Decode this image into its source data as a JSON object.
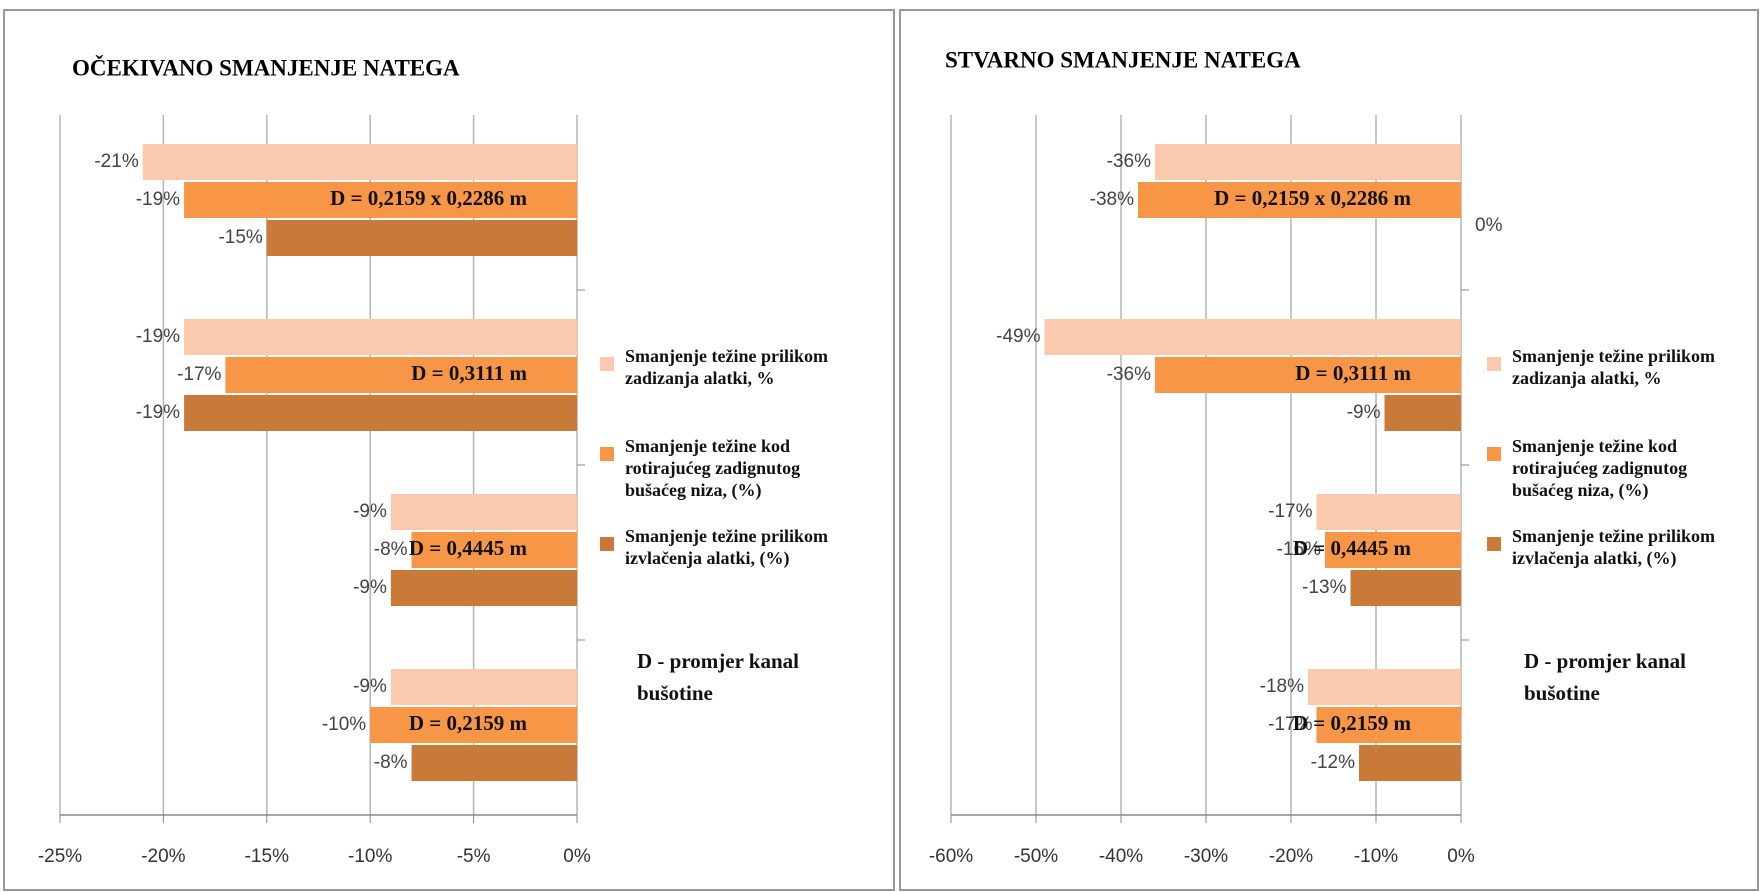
{
  "chart_data": [
    {
      "type": "bar",
      "orientation": "horizontal",
      "title": "OČEKIVANO SMANJENJE NATEGA",
      "categories": [
        "D = 0,2159 x 0,2286 m",
        "D = 0,3111 m",
        "D = 0,4445 m",
        "D = 0,2159 m"
      ],
      "series": [
        {
          "name": "Smanjenje težine prilikom zadizanja alatki, %",
          "color": "#fbcaae",
          "values": [
            -21,
            -19,
            -9,
            -9
          ],
          "value_labels": [
            "-21%",
            "-19%",
            "-9%",
            "-9%"
          ]
        },
        {
          "name": "Smanjenje težine kod rotirajućeg zadignutog bušaćeg niza, (%)",
          "color": "#f79646",
          "values": [
            -19,
            -17,
            -8,
            -10
          ],
          "value_labels": [
            "-19%",
            "-17%",
            "-8%",
            "-10%"
          ]
        },
        {
          "name": "Smanjenje težine prilikom izvlačenja alatki, (%)",
          "color": "#c97a38",
          "values": [
            -15,
            -19,
            -9,
            -8
          ],
          "value_labels": [
            "-15%",
            "-19%",
            "-9%",
            "-8%"
          ]
        }
      ],
      "xlim": [
        -25,
        0
      ],
      "xticks": [
        {
          "value": -25,
          "label": "-25%"
        },
        {
          "value": -20,
          "label": "-20%"
        },
        {
          "value": -15,
          "label": "-15%"
        },
        {
          "value": -10,
          "label": "-10%"
        },
        {
          "value": -5,
          "label": "-5%"
        },
        {
          "value": 0,
          "label": "0%"
        }
      ],
      "grid": true,
      "legend": "right",
      "note": "D - promjer kanal bušotine"
    },
    {
      "type": "bar",
      "orientation": "horizontal",
      "title": "STVARNO SMANJENJE NATEGA",
      "categories": [
        "D = 0,2159 x 0,2286 m",
        "D = 0,3111 m",
        "D = 0,4445 m",
        "D = 0,2159 m"
      ],
      "series": [
        {
          "name": "Smanjenje težine prilikom zadizanja alatki, %",
          "color": "#fbcaae",
          "values": [
            -36,
            -49,
            -17,
            -18
          ],
          "value_labels": [
            "-36%",
            "-49%",
            "-17%",
            "-18%"
          ]
        },
        {
          "name": "Smanjenje težine kod rotirajućeg zadignutog bušaćeg niza, (%)",
          "color": "#f79646",
          "values": [
            -38,
            -36,
            -16,
            -17
          ],
          "value_labels": [
            "-38%",
            "-36%",
            "-16%",
            "-17%"
          ]
        },
        {
          "name": "Smanjenje težine prilikom izvlačenja alatki, (%)",
          "color": "#c97a38",
          "values": [
            0,
            -9,
            -13,
            -12
          ],
          "value_labels": [
            "0%",
            "-9%",
            "-13%",
            "-12%"
          ]
        }
      ],
      "xlim": [
        -60,
        0
      ],
      "xticks": [
        {
          "value": -60,
          "label": "-60%"
        },
        {
          "value": -50,
          "label": "-50%"
        },
        {
          "value": -40,
          "label": "-40%"
        },
        {
          "value": -30,
          "label": "-30%"
        },
        {
          "value": -20,
          "label": "-20%"
        },
        {
          "value": -10,
          "label": "-10%"
        },
        {
          "value": 0,
          "label": "0%"
        }
      ],
      "grid": true,
      "legend": "right",
      "note": "D - promjer kanal bušotine"
    }
  ]
}
